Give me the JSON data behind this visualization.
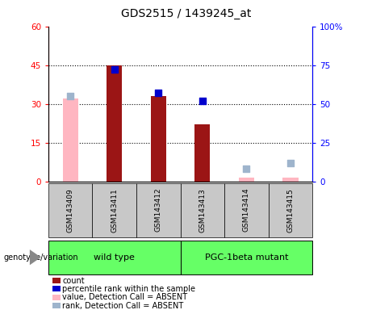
{
  "title": "GDS2515 / 1439245_at",
  "samples": [
    "GSM143409",
    "GSM143411",
    "GSM143412",
    "GSM143413",
    "GSM143414",
    "GSM143415"
  ],
  "count_values": [
    null,
    45,
    33,
    22,
    null,
    null
  ],
  "count_absent_values": [
    32,
    null,
    null,
    null,
    1.5,
    1.5
  ],
  "rank_values_pct": [
    null,
    72,
    57,
    52,
    null,
    null
  ],
  "rank_absent_values_pct": [
    55,
    null,
    null,
    null,
    8,
    12
  ],
  "ylim_left": [
    0,
    60
  ],
  "ylim_right": [
    0,
    100
  ],
  "yticks_left": [
    0,
    15,
    30,
    45,
    60
  ],
  "yticks_right": [
    0,
    25,
    50,
    75,
    100
  ],
  "ytick_labels_left": [
    "0",
    "15",
    "30",
    "45",
    "60"
  ],
  "ytick_labels_right": [
    "0",
    "25",
    "50",
    "75",
    "100%"
  ],
  "wild_type_label": "wild type",
  "mutant_label": "PGC-1beta mutant",
  "genotype_label": "genotype/variation",
  "color_count": "#9B1515",
  "color_rank": "#0000CD",
  "color_count_absent": "#FFB6C1",
  "color_rank_absent": "#9EB4CC",
  "bar_width": 0.35,
  "dot_size": 35,
  "legend_labels": [
    "count",
    "percentile rank within the sample",
    "value, Detection Call = ABSENT",
    "rank, Detection Call = ABSENT"
  ],
  "legend_colors": [
    "#9B1515",
    "#0000CD",
    "#FFB6C1",
    "#9EB4CC"
  ]
}
